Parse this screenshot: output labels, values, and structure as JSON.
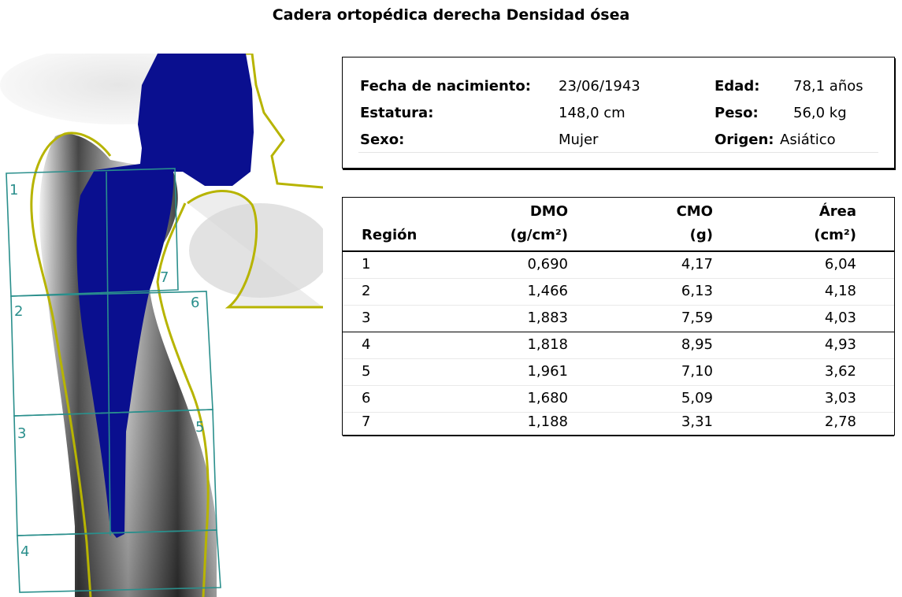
{
  "title": "Cadera ortopédica derecha Densidad ósea",
  "patient": {
    "birth_label": "Fecha de nacimiento:",
    "birth_value": "23/06/1943",
    "age_label": "Edad:",
    "age_value": "78,1 años",
    "height_label": "Estatura:",
    "height_value": "148,0 cm",
    "weight_label": "Peso:",
    "weight_value": "56,0 kg",
    "sex_label": "Sexo:",
    "sex_value": "Mujer",
    "origin_label": "Origen:",
    "origin_value": "Asiático"
  },
  "table": {
    "headers": {
      "region": "Región",
      "dmo": "DMO",
      "dmo_unit": "(g/cm²)",
      "cmo": "CMO",
      "cmo_unit": "(g)",
      "area": "Área",
      "area_unit": "(cm²)"
    },
    "rows": [
      {
        "region": "1",
        "dmo": "0,690",
        "cmo": "4,17",
        "area": "6,04"
      },
      {
        "region": "2",
        "dmo": "1,466",
        "cmo": "6,13",
        "area": "4,18"
      },
      {
        "region": "3",
        "dmo": "1,883",
        "cmo": "7,59",
        "area": "4,03"
      },
      {
        "region": "4",
        "dmo": "1,818",
        "cmo": "8,95",
        "area": "4,93"
      },
      {
        "region": "5",
        "dmo": "1,961",
        "cmo": "7,10",
        "area": "3,62"
      },
      {
        "region": "6",
        "dmo": "1,680",
        "cmo": "5,09",
        "area": "3,03"
      },
      {
        "region": "7",
        "dmo": "1,188",
        "cmo": "3,31",
        "area": "2,78"
      }
    ]
  },
  "scan": {
    "zone_labels": [
      "1",
      "2",
      "3",
      "4",
      "5",
      "6",
      "7"
    ],
    "colors": {
      "implant": "#0a0f8f",
      "outline": "#b7b400",
      "zones": "#2a8f8c",
      "bone": "#1a1a1a"
    }
  }
}
